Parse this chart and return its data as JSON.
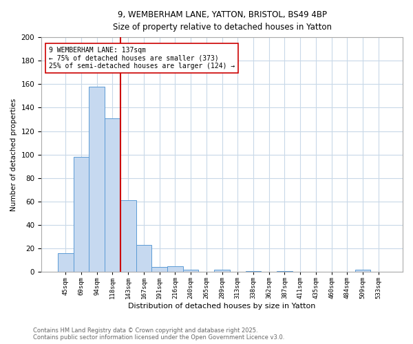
{
  "title_line1": "9, WEMBERHAM LANE, YATTON, BRISTOL, BS49 4BP",
  "title_line2": "Size of property relative to detached houses in Yatton",
  "xlabel": "Distribution of detached houses by size in Yatton",
  "ylabel": "Number of detached properties",
  "bar_labels": [
    "45sqm",
    "69sqm",
    "94sqm",
    "118sqm",
    "143sqm",
    "167sqm",
    "191sqm",
    "216sqm",
    "240sqm",
    "265sqm",
    "289sqm",
    "313sqm",
    "338sqm",
    "362sqm",
    "387sqm",
    "411sqm",
    "435sqm",
    "460sqm",
    "484sqm",
    "509sqm",
    "533sqm"
  ],
  "bar_values": [
    16,
    98,
    158,
    131,
    61,
    23,
    4,
    5,
    2,
    0,
    2,
    0,
    1,
    0,
    1,
    0,
    0,
    0,
    0,
    2,
    0
  ],
  "bar_color": "#c6d9f0",
  "bar_edge_color": "#5b9bd5",
  "red_line_x": 3.5,
  "red_line_color": "#cc0000",
  "annotation_text": "9 WEMBERHAM LANE: 137sqm\n← 75% of detached houses are smaller (373)\n25% of semi-detached houses are larger (124) →",
  "annotation_box_color": "#ffffff",
  "annotation_box_edge": "#cc0000",
  "ylim": [
    0,
    200
  ],
  "yticks": [
    0,
    20,
    40,
    60,
    80,
    100,
    120,
    140,
    160,
    180,
    200
  ],
  "footer_line1": "Contains HM Land Registry data © Crown copyright and database right 2025.",
  "footer_line2": "Contains public sector information licensed under the Open Government Licence v3.0.",
  "bg_color": "#ffffff",
  "grid_color": "#c8d8e8"
}
